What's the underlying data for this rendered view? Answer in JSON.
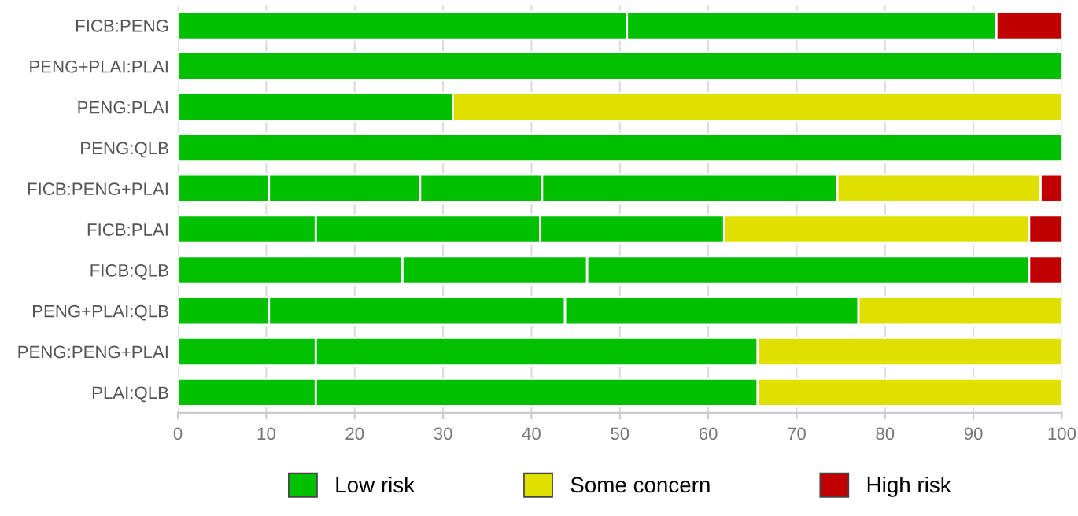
{
  "chart_data": {
    "type": "bar",
    "orientation": "horizontal",
    "stacked": true,
    "categories": [
      "FICB:PENG",
      "PENG+PLAI:PLAI",
      "PENG:PLAI",
      "PENG:QLB",
      "FICB:PENG+PLAI",
      "FICB:PLAI",
      "FICB:QLB",
      "PENG+PLAI:QLB",
      "PENG:PENG+PLAI",
      "PLAI:QLB"
    ],
    "series": [
      {
        "name": "Low risk",
        "color": "#00c000",
        "values": [
          50.8,
          100,
          31.1,
          100,
          10.3,
          15.6,
          25.4,
          10.3,
          15.6,
          15.6
        ]
      },
      {
        "color": "#01c000",
        "values": [
          41.8,
          null,
          null,
          null,
          17.1,
          25.4,
          20.9,
          33.5,
          50.0,
          50.0
        ]
      },
      {
        "color": "#01c000",
        "values": [
          null,
          null,
          null,
          null,
          13.8,
          20.8,
          50.0,
          33.2,
          null,
          null
        ]
      },
      {
        "color": "#01c000",
        "values": [
          null,
          null,
          null,
          null,
          33.4,
          null,
          null,
          null,
          null,
          null
        ]
      },
      {
        "name": "Some concern",
        "color": "#e0e000",
        "values": [
          null,
          null,
          68.9,
          null,
          23.0,
          34.5,
          null,
          23.0,
          34.4,
          34.4
        ]
      },
      {
        "name": "High risk",
        "color": "#c00000",
        "values": [
          7.4,
          null,
          null,
          null,
          2.4,
          3.7,
          3.7,
          null,
          null,
          null
        ]
      }
    ],
    "xlim": [
      0,
      100
    ],
    "xticks": [
      0,
      10,
      20,
      30,
      40,
      50,
      60,
      70,
      80,
      90,
      100
    ],
    "grid": "x",
    "legend": "bottom"
  }
}
